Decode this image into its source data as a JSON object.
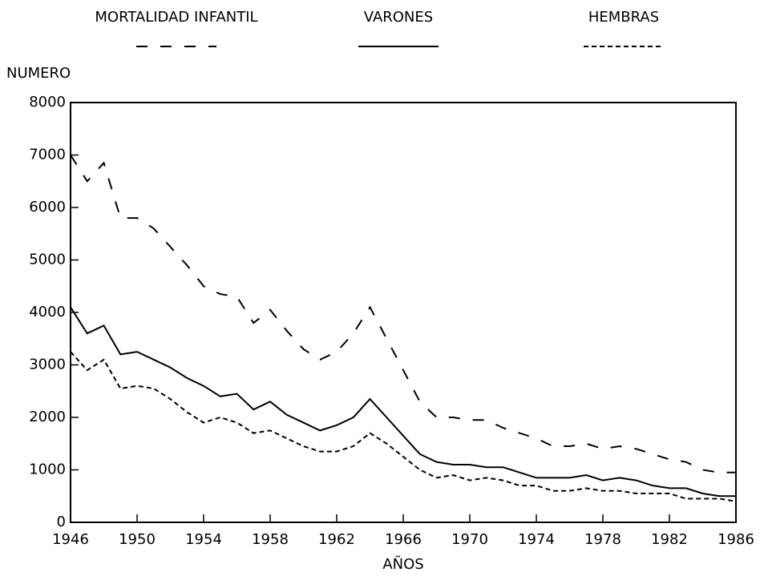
{
  "chart_data": {
    "type": "line",
    "ylabel": "NUMERO",
    "xlabel": "AÑOS",
    "x": [
      1946,
      1947,
      1948,
      1949,
      1950,
      1951,
      1952,
      1953,
      1954,
      1955,
      1956,
      1957,
      1958,
      1959,
      1960,
      1961,
      1962,
      1963,
      1964,
      1965,
      1966,
      1967,
      1968,
      1969,
      1970,
      1971,
      1972,
      1973,
      1974,
      1975,
      1976,
      1977,
      1978,
      1979,
      1980,
      1981,
      1982,
      1983,
      1984,
      1985,
      1986
    ],
    "series": [
      {
        "name": "MORTALIDAD INFANTIL",
        "color": "#000000",
        "style": "dashed",
        "values": [
          7000,
          6500,
          6850,
          5800,
          5800,
          5600,
          5250,
          4900,
          4500,
          4350,
          4300,
          3800,
          4050,
          3650,
          3300,
          3100,
          3250,
          3600,
          4100,
          3500,
          2900,
          2300,
          2000,
          2000,
          1950,
          1950,
          1800,
          1700,
          1600,
          1450,
          1450,
          1500,
          1400,
          1450,
          1400,
          1300,
          1200,
          1150,
          1000,
          950,
          950
        ]
      },
      {
        "name": "VARONES",
        "color": "#000000",
        "style": "solid",
        "values": [
          4100,
          3600,
          3750,
          3200,
          3250,
          3100,
          2950,
          2750,
          2600,
          2400,
          2450,
          2150,
          2300,
          2050,
          1900,
          1750,
          1850,
          2000,
          2350,
          2000,
          1650,
          1300,
          1150,
          1100,
          1100,
          1050,
          1050,
          950,
          850,
          850,
          850,
          900,
          800,
          850,
          800,
          700,
          650,
          650,
          550,
          500,
          500
        ]
      },
      {
        "name": "HEMBRAS",
        "color": "#000000",
        "style": "dotted",
        "values": [
          3250,
          2900,
          3100,
          2550,
          2600,
          2550,
          2350,
          2100,
          1900,
          2000,
          1900,
          1700,
          1750,
          1600,
          1450,
          1350,
          1350,
          1450,
          1700,
          1500,
          1250,
          1000,
          850,
          900,
          800,
          850,
          800,
          700,
          700,
          600,
          600,
          650,
          600,
          600,
          550,
          550,
          550,
          450,
          450,
          450,
          400
        ]
      }
    ],
    "xlim": [
      1946,
      1986
    ],
    "xticks": [
      1946,
      1950,
      1954,
      1958,
      1962,
      1966,
      1970,
      1974,
      1978,
      1982,
      1986
    ],
    "ylim": [
      0,
      8000
    ],
    "yticks": [
      0,
      1000,
      2000,
      3000,
      4000,
      5000,
      6000,
      7000,
      8000
    ],
    "grid": false,
    "legend": "top"
  }
}
